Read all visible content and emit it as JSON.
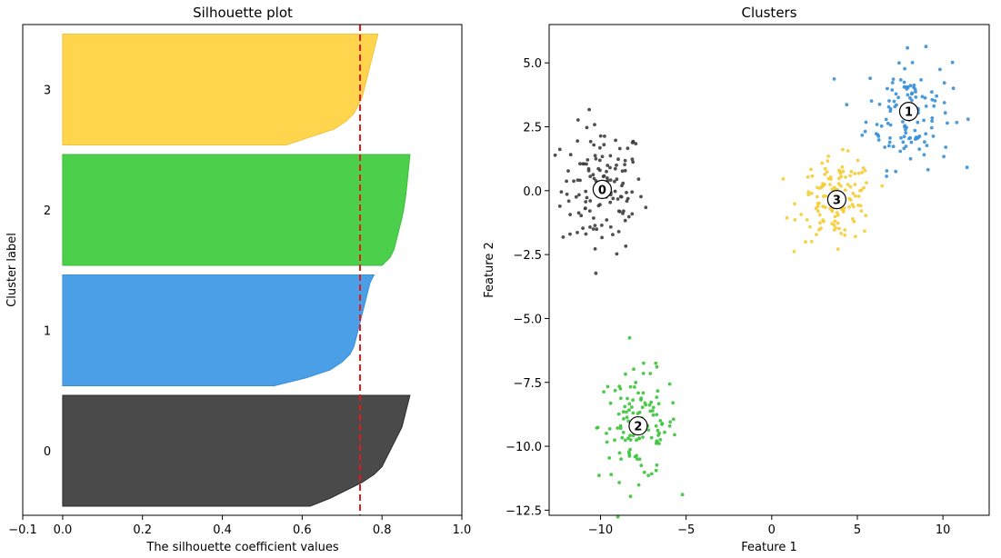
{
  "chart_data": [
    {
      "type": "area",
      "title": "Silhouette plot",
      "xlabel": "The silhouette coefficient values",
      "ylabel": "Cluster label",
      "xlim": [
        -0.1,
        1.0
      ],
      "xticks": [
        -0.1,
        0.0,
        0.2,
        0.4,
        0.6,
        0.8,
        1.0
      ],
      "xtick_labels": [
        "−0.1",
        "0.0",
        "0.2",
        "0.4",
        "0.6",
        "0.8",
        "1.0"
      ],
      "average_silhouette": 0.745,
      "clusters": [
        {
          "label": "0",
          "color": "#4a4a4a",
          "edge": "#2b2b2b",
          "profile": [
            0.87,
            0.865,
            0.86,
            0.855,
            0.85,
            0.84,
            0.83,
            0.82,
            0.81,
            0.8,
            0.78,
            0.75,
            0.71,
            0.67,
            0.62
          ]
        },
        {
          "label": "1",
          "color": "#4a9fe6",
          "edge": "#3a8fd6",
          "profile": [
            0.78,
            0.77,
            0.765,
            0.76,
            0.755,
            0.75,
            0.745,
            0.74,
            0.735,
            0.73,
            0.72,
            0.7,
            0.67,
            0.61,
            0.53
          ]
        },
        {
          "label": "2",
          "color": "#4cd04c",
          "edge": "#3cbb3c",
          "profile": [
            0.87,
            0.868,
            0.866,
            0.864,
            0.862,
            0.86,
            0.857,
            0.854,
            0.85,
            0.845,
            0.84,
            0.835,
            0.83,
            0.82,
            0.8
          ]
        },
        {
          "label": "3",
          "color": "#ffd54d",
          "edge": "#f0c43a",
          "profile": [
            0.79,
            0.785,
            0.78,
            0.775,
            0.77,
            0.765,
            0.76,
            0.755,
            0.75,
            0.74,
            0.73,
            0.71,
            0.68,
            0.62,
            0.56
          ]
        }
      ]
    },
    {
      "type": "scatter",
      "title": "Clusters",
      "xlabel": "Feature 1",
      "ylabel": "Feature 2",
      "xlim": [
        -13.0,
        12.7
      ],
      "ylim": [
        -12.7,
        6.5
      ],
      "xticks": [
        -10,
        -5,
        0,
        5,
        10
      ],
      "xtick_labels": [
        "−10",
        "−5",
        "0",
        "5",
        "10"
      ],
      "yticks": [
        5.0,
        2.5,
        0.0,
        -2.5,
        -5.0,
        -7.5,
        -10.0,
        -12.5
      ],
      "ytick_labels": [
        "5.0",
        "2.5",
        "0.0",
        "−2.5",
        "−5.0",
        "−7.5",
        "−10.0",
        "−12.5"
      ],
      "clusters": [
        {
          "label": "0",
          "color": "#3d3d3d",
          "center": [
            -9.9,
            0.05
          ],
          "spread": [
            1.2,
            1.25
          ],
          "count": 130
        },
        {
          "label": "1",
          "color": "#3a8fd6",
          "center": [
            8.0,
            3.1
          ],
          "spread": [
            1.25,
            1.1
          ],
          "count": 130
        },
        {
          "label": "2",
          "color": "#3cc43c",
          "center": [
            -7.8,
            -9.2
          ],
          "spread": [
            1.15,
            1.05
          ],
          "count": 130
        },
        {
          "label": "3",
          "color": "#f5cd36",
          "center": [
            3.8,
            -0.35
          ],
          "spread": [
            1.1,
            0.8
          ],
          "count": 130
        }
      ]
    }
  ]
}
